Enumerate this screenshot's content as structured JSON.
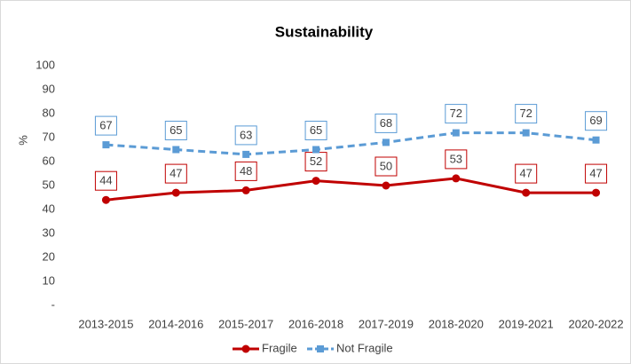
{
  "chart_data": {
    "type": "line",
    "title": "Sustainability",
    "y_label": "%",
    "categories": [
      "2013-2015",
      "2014-2016",
      "2015-2017",
      "2016-2018",
      "2017-2019",
      "2018-2020",
      "2019-2021",
      "2020-2022"
    ],
    "series": [
      {
        "name": "Fragile",
        "color": "#c00000",
        "marker": "circle",
        "dashed": false,
        "values": [
          44,
          47,
          48,
          52,
          50,
          53,
          47,
          47
        ]
      },
      {
        "name": "Not Fragile",
        "color": "#5b9bd5",
        "marker": "square",
        "dashed": true,
        "values": [
          67,
          65,
          63,
          65,
          68,
          72,
          72,
          69
        ]
      }
    ],
    "ylim": [
      0,
      100
    ],
    "yticks": [
      {
        "value": 0,
        "label": "-"
      },
      10,
      20,
      30,
      40,
      50,
      60,
      70,
      80,
      90,
      100
    ],
    "grid": false
  }
}
